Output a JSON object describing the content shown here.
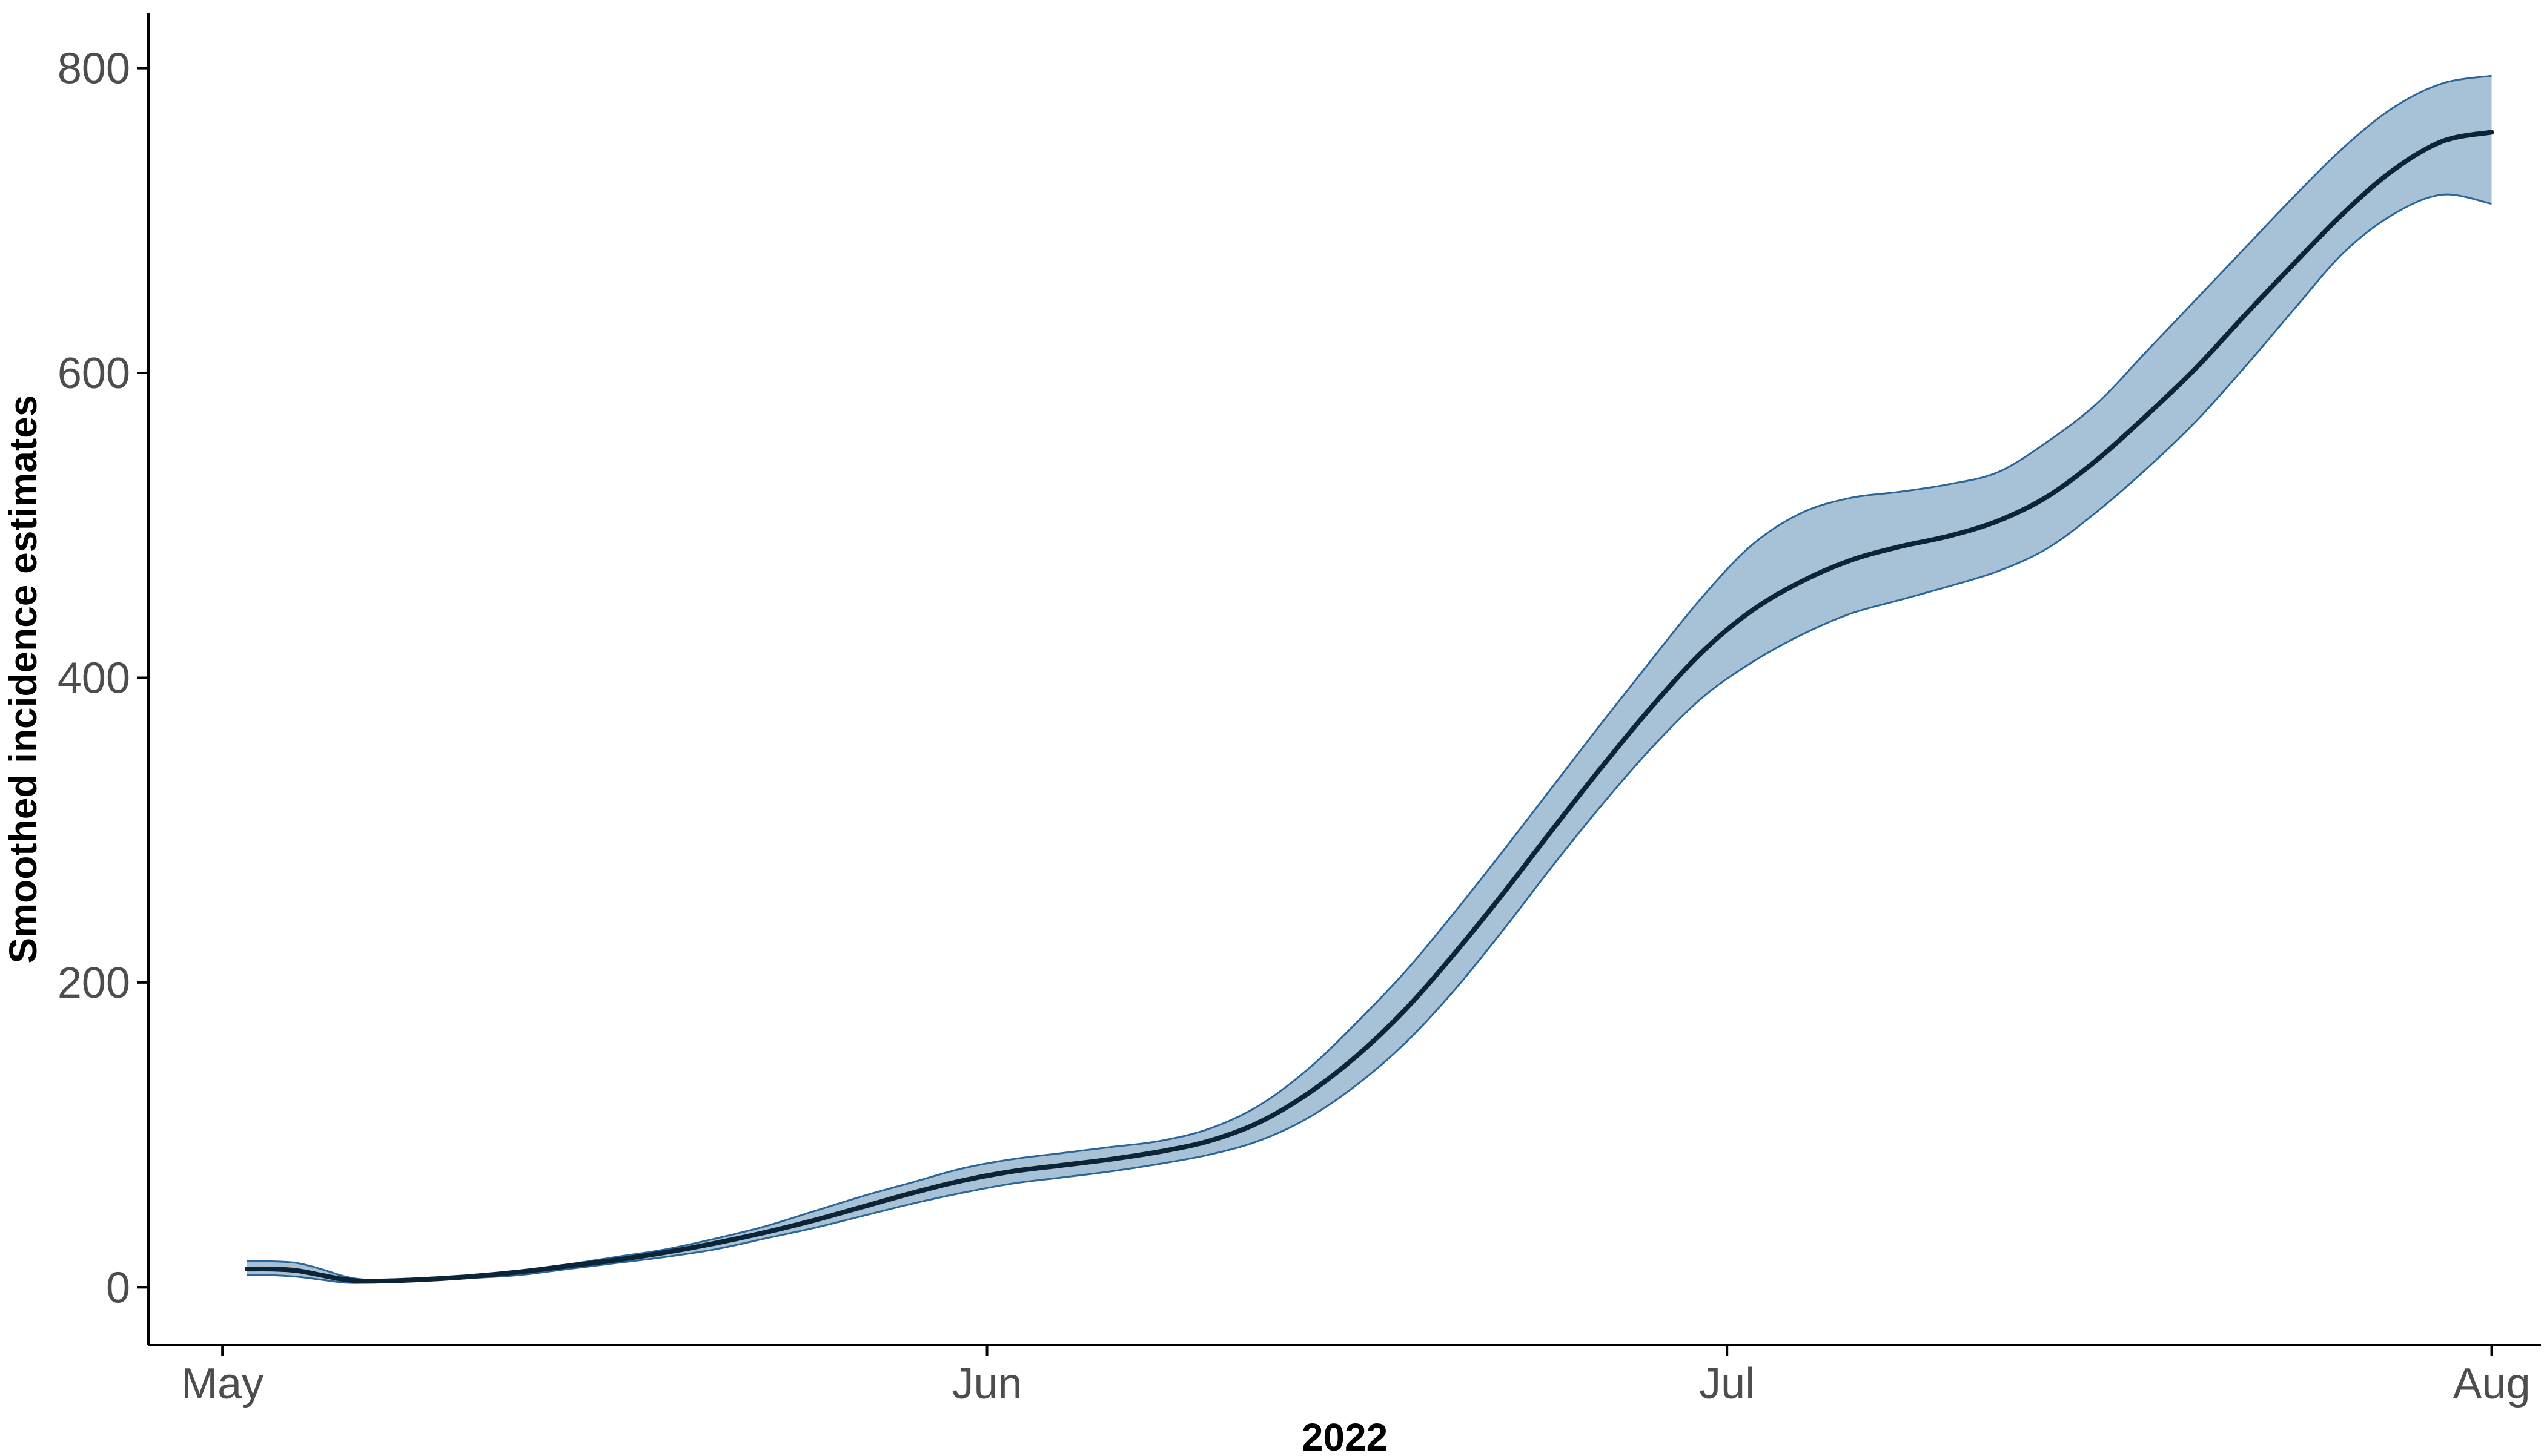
{
  "chart_data": {
    "type": "area",
    "title": "",
    "xlabel": "2022",
    "ylabel": "Smoothed incidence estimates",
    "x_axis": {
      "type": "date",
      "range": [
        "2022-04-28",
        "2022-08-03"
      ],
      "ticks": [
        {
          "value": "2022-05-01",
          "label": "May"
        },
        {
          "value": "2022-06-01",
          "label": "Jun"
        },
        {
          "value": "2022-07-01",
          "label": "Jul"
        },
        {
          "value": "2022-08-01",
          "label": "Aug"
        }
      ]
    },
    "y_axis": {
      "range": [
        -38,
        836
      ],
      "ticks": [
        0,
        200,
        400,
        600,
        800
      ]
    },
    "grid": false,
    "legend": "none",
    "colors": {
      "line": "#0d2436",
      "ribbon_fill": "#a7c2d7",
      "ribbon_edge": "#2c6698",
      "axis": "#000000",
      "tick_label": "#4d4d4d"
    },
    "series": [
      {
        "x": [
          "2022-05-02",
          "2022-05-03",
          "2022-05-04",
          "2022-05-05",
          "2022-05-06",
          "2022-05-07",
          "2022-05-09",
          "2022-05-11",
          "2022-05-13",
          "2022-05-15",
          "2022-05-17",
          "2022-05-19",
          "2022-05-21",
          "2022-05-23",
          "2022-05-25",
          "2022-05-27",
          "2022-05-29",
          "2022-05-31",
          "2022-06-02",
          "2022-06-04",
          "2022-06-06",
          "2022-06-08",
          "2022-06-10",
          "2022-06-12",
          "2022-06-14",
          "2022-06-16",
          "2022-06-18",
          "2022-06-20",
          "2022-06-22",
          "2022-06-24",
          "2022-06-26",
          "2022-06-28",
          "2022-06-30",
          "2022-07-02",
          "2022-07-04",
          "2022-07-06",
          "2022-07-08",
          "2022-07-10",
          "2022-07-12",
          "2022-07-14",
          "2022-07-16",
          "2022-07-18",
          "2022-07-20",
          "2022-07-22",
          "2022-07-24",
          "2022-07-26",
          "2022-07-28",
          "2022-07-30",
          "2022-08-01"
        ],
        "values": [
          12,
          12,
          11,
          8,
          5,
          4,
          5,
          7,
          10,
          14,
          18,
          23,
          29,
          36,
          44,
          53,
          62,
          70,
          76,
          80,
          84,
          89,
          96,
          108,
          127,
          152,
          183,
          220,
          260,
          302,
          343,
          382,
          417,
          444,
          463,
          477,
          486,
          493,
          503,
          519,
          543,
          572,
          603,
          638,
          672,
          705,
          733,
          752,
          758
        ],
        "lower": [
          8,
          8,
          7,
          5,
          3,
          3,
          4,
          6,
          8,
          12,
          16,
          20,
          25,
          32,
          39,
          47,
          55,
          62,
          68,
          72,
          76,
          81,
          87,
          96,
          111,
          133,
          161,
          196,
          236,
          278,
          318,
          355,
          387,
          410,
          428,
          442,
          451,
          460,
          470,
          485,
          509,
          537,
          568,
          604,
          642,
          679,
          704,
          717,
          711
        ],
        "upper": [
          17,
          17,
          16,
          12,
          7,
          5,
          6,
          8,
          11,
          15,
          20,
          25,
          32,
          40,
          50,
          60,
          69,
          78,
          84,
          88,
          92,
          96,
          104,
          119,
          143,
          174,
          208,
          247,
          288,
          330,
          372,
          413,
          453,
          487,
          508,
          518,
          522,
          527,
          535,
          555,
          580,
          614,
          648,
          682,
          716,
          748,
          774,
          790,
          795
        ]
      }
    ]
  }
}
